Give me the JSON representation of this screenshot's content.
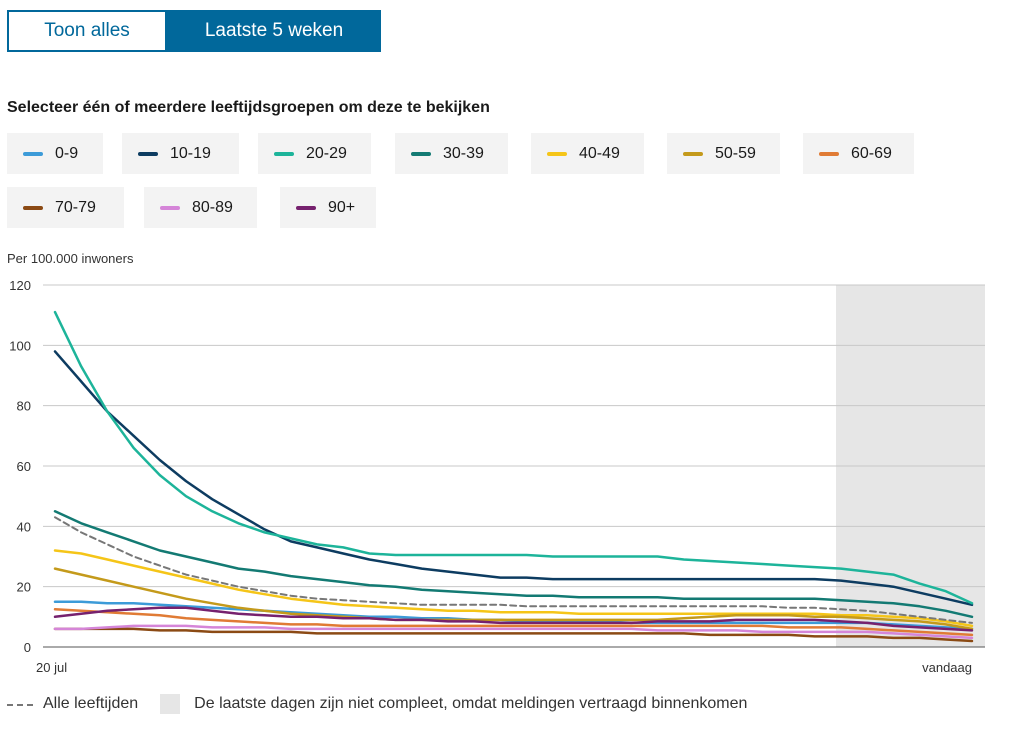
{
  "tabs": {
    "all_label": "Toon alles",
    "recent_label": "Laatste 5 weken"
  },
  "heading": "Selecteer één of meerdere leeftijdsgroepen om deze te bekijken",
  "age_groups": [
    {
      "label": "0-9",
      "color": "#3c9bd8"
    },
    {
      "label": "10-19",
      "color": "#0d3c61"
    },
    {
      "label": "20-29",
      "color": "#1db49a"
    },
    {
      "label": "30-39",
      "color": "#137a73"
    },
    {
      "label": "40-49",
      "color": "#f5c518"
    },
    {
      "label": "50-59",
      "color": "#c49a1b"
    },
    {
      "label": "60-69",
      "color": "#e07b35"
    },
    {
      "label": "70-79",
      "color": "#8b4a14"
    },
    {
      "label": "80-89",
      "color": "#d585d8"
    },
    {
      "label": "90+",
      "color": "#76216e"
    }
  ],
  "legend": {
    "all_ages_label": "Alle leeftijden",
    "incomplete_label": "De laatste dagen zijn niet compleet, omdat meldingen vertraagd binnenkomen"
  },
  "chart_data": {
    "type": "line",
    "ylabel": "Per 100.000 inwoners",
    "ylim": [
      0,
      120
    ],
    "yticks": [
      0,
      20,
      40,
      60,
      80,
      100,
      120
    ],
    "x_tick_labels": [
      "20 jul",
      "vandaag"
    ],
    "num_points": 36,
    "shaded_from_index": 30,
    "series": [
      {
        "name": "0-9",
        "color": "#3c9bd8",
        "values": [
          15,
          15,
          14.5,
          14.5,
          14,
          13.5,
          13,
          12.5,
          12,
          11.5,
          11,
          10.5,
          10,
          10,
          9.5,
          9.5,
          9,
          9,
          8.5,
          8.5,
          8.5,
          8.5,
          8,
          8,
          8,
          8,
          8,
          8,
          8,
          8,
          8,
          8,
          7.5,
          7,
          6.5,
          6
        ]
      },
      {
        "name": "10-19",
        "color": "#0d3c61",
        "values": [
          98,
          88,
          78,
          70,
          62,
          55,
          49,
          44,
          39,
          35,
          33,
          31,
          29,
          27.5,
          26,
          25,
          24,
          23,
          23,
          22.5,
          22.5,
          22.5,
          22.5,
          22.5,
          22.5,
          22.5,
          22.5,
          22.5,
          22.5,
          22.5,
          22,
          21,
          20,
          18,
          16,
          14
        ]
      },
      {
        "name": "20-29",
        "color": "#1db49a",
        "values": [
          111,
          93,
          78,
          66,
          57,
          50,
          45,
          41,
          38,
          36,
          34,
          33,
          31,
          30.5,
          30.5,
          30.5,
          30.5,
          30.5,
          30.5,
          30,
          30,
          30,
          30,
          30,
          29,
          28.5,
          28,
          27.5,
          27,
          26.5,
          26,
          25,
          24,
          21,
          18.5,
          14.5
        ]
      },
      {
        "name": "30-39",
        "color": "#137a73",
        "values": [
          45,
          41,
          38,
          35,
          32,
          30,
          28,
          26,
          25,
          23.5,
          22.5,
          21.5,
          20.5,
          20,
          19,
          18.5,
          18,
          17.5,
          17,
          17,
          16.5,
          16.5,
          16.5,
          16.5,
          16,
          16,
          16,
          16,
          16,
          16,
          15.5,
          15,
          14.5,
          13.5,
          12,
          10
        ]
      },
      {
        "name": "40-49",
        "color": "#f5c518",
        "values": [
          32,
          31,
          29,
          27,
          25,
          23,
          21,
          19,
          17.5,
          16,
          15,
          14,
          13.5,
          13,
          12.5,
          12,
          12,
          11.5,
          11.5,
          11.5,
          11,
          11,
          11,
          11,
          11,
          11,
          11,
          11,
          11,
          11,
          10.5,
          10.5,
          10,
          9.5,
          8.5,
          7
        ]
      },
      {
        "name": "50-59",
        "color": "#c49a1b",
        "values": [
          26,
          24,
          22,
          20,
          18,
          16,
          14.5,
          13,
          12,
          11,
          10.5,
          10,
          9.5,
          9,
          9,
          9,
          9,
          9,
          9,
          9,
          9,
          9,
          9,
          9,
          9.5,
          10,
          10.5,
          10.5,
          10.5,
          10,
          10,
          9.5,
          9,
          8.5,
          7.5,
          6
        ]
      },
      {
        "name": "60-69",
        "color": "#e07b35",
        "values": [
          12.5,
          12,
          11.5,
          11,
          10.5,
          9.5,
          9,
          8.5,
          8,
          7.5,
          7.5,
          7,
          7,
          7,
          7,
          7,
          7,
          7,
          7,
          7,
          7,
          7,
          7,
          7,
          7,
          7,
          7,
          7,
          6.5,
          6.5,
          6.5,
          6,
          5.5,
          5,
          4.5,
          4
        ]
      },
      {
        "name": "70-79",
        "color": "#8b4a14",
        "values": [
          6,
          6,
          6,
          6,
          5.5,
          5.5,
          5,
          5,
          5,
          5,
          4.5,
          4.5,
          4.5,
          4.5,
          4.5,
          4.5,
          4.5,
          4.5,
          4.5,
          4.5,
          4.5,
          4.5,
          4.5,
          4.5,
          4.5,
          4,
          4,
          4,
          4,
          3.5,
          3.5,
          3.5,
          3,
          3,
          2.5,
          2
        ]
      },
      {
        "name": "80-89",
        "color": "#d585d8",
        "values": [
          6,
          6,
          6.5,
          7,
          7,
          7,
          6.5,
          6.5,
          6.5,
          6,
          6,
          6,
          6,
          6,
          6,
          6,
          6,
          6,
          6,
          6,
          6,
          6,
          6,
          5.5,
          5.5,
          5.5,
          5.5,
          5,
          5,
          5,
          5,
          5,
          4.5,
          4,
          3.5,
          3
        ]
      },
      {
        "name": "90+",
        "color": "#76216e",
        "values": [
          10,
          11,
          12,
          12.5,
          13,
          13,
          12,
          11,
          10.5,
          10,
          10,
          9.5,
          9.5,
          9,
          9,
          8.5,
          8.5,
          8,
          8,
          8,
          8,
          8,
          8,
          8.5,
          8.5,
          8.5,
          9,
          9,
          9,
          9,
          8.5,
          8,
          7,
          6.5,
          6,
          5.5
        ]
      },
      {
        "name": "Alle leeftijden",
        "color": "#777777",
        "dashed": true,
        "values": [
          43,
          38,
          34,
          30,
          27,
          24,
          22,
          20,
          18.5,
          17,
          16,
          15.5,
          15,
          14.5,
          14,
          14,
          14,
          14,
          13.5,
          13.5,
          13.5,
          13.5,
          13.5,
          13.5,
          13.5,
          13.5,
          13.5,
          13.5,
          13,
          13,
          12.5,
          12,
          11,
          10,
          9,
          8
        ]
      }
    ]
  }
}
